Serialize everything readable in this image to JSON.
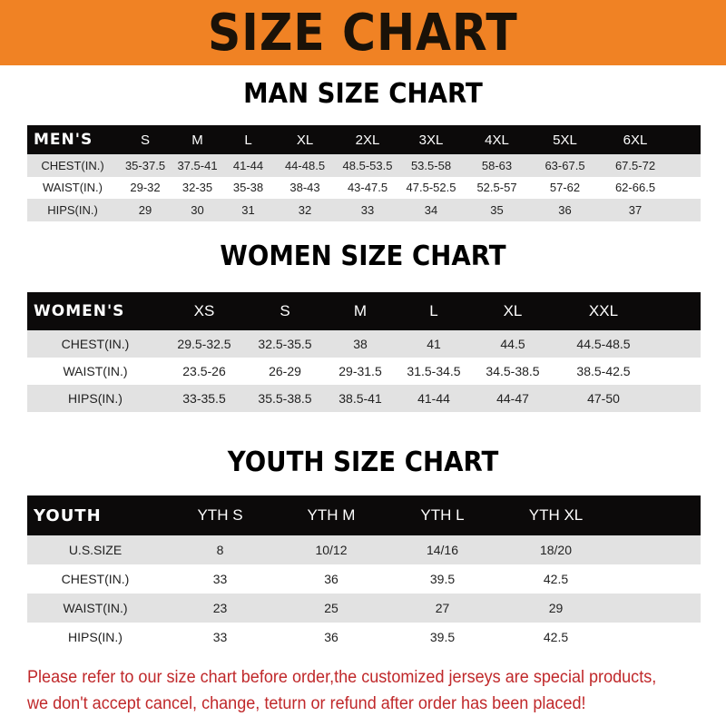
{
  "banner_title": "SIZE CHART",
  "men": {
    "title": "MAN SIZE CHART",
    "header": [
      "MEN'S",
      "S",
      "M",
      "L",
      "XL",
      "2XL",
      "3XL",
      "4XL",
      "5XL",
      "6XL"
    ],
    "rows": [
      [
        "CHEST(IN.)",
        "35-37.5",
        "37.5-41",
        "41-44",
        "44-48.5",
        "48.5-53.5",
        "53.5-58",
        "58-63",
        "63-67.5",
        "67.5-72"
      ],
      [
        "WAIST(IN.)",
        "29-32",
        "32-35",
        "35-38",
        "38-43",
        "43-47.5",
        "47.5-52.5",
        "52.5-57",
        "57-62",
        "62-66.5"
      ],
      [
        "HIPS(IN.)",
        "29",
        "30",
        "31",
        "32",
        "33",
        "34",
        "35",
        "36",
        "37"
      ]
    ]
  },
  "women": {
    "title": "WOMEN SIZE CHART",
    "header": [
      "WOMEN'S",
      "XS",
      "S",
      "M",
      "L",
      "XL",
      "XXL"
    ],
    "rows": [
      [
        "CHEST(IN.)",
        "29.5-32.5",
        "32.5-35.5",
        "38",
        "41",
        "44.5",
        "44.5-48.5"
      ],
      [
        "WAIST(IN.)",
        "23.5-26",
        "26-29",
        "29-31.5",
        "31.5-34.5",
        "34.5-38.5",
        "38.5-42.5"
      ],
      [
        "HIPS(IN.)",
        "33-35.5",
        "35.5-38.5",
        "38.5-41",
        "41-44",
        "44-47",
        "47-50"
      ]
    ]
  },
  "youth": {
    "title": "YOUTH SIZE CHART",
    "header": [
      "YOUTH",
      "YTH S",
      "YTH M",
      "YTH L",
      "YTH XL"
    ],
    "rows": [
      [
        "U.S.SIZE",
        "8",
        "10/12",
        "14/16",
        "18/20"
      ],
      [
        "CHEST(IN.)",
        "33",
        "36",
        "39.5",
        "42.5"
      ],
      [
        "WAIST(IN.)",
        "23",
        "25",
        "27",
        "29"
      ],
      [
        "HIPS(IN.)",
        "33",
        "36",
        "39.5",
        "42.5"
      ]
    ]
  },
  "notice": [
    "Please refer to our size chart before order,the customized jerseys are special products,",
    "we don't accept cancel, change, teturn or refund after order has been placed!"
  ],
  "colors": {
    "banner": "#f08224",
    "header_row": "#0c0a0a",
    "stripe": "#e2e2e2",
    "notice": "#c0282a"
  }
}
